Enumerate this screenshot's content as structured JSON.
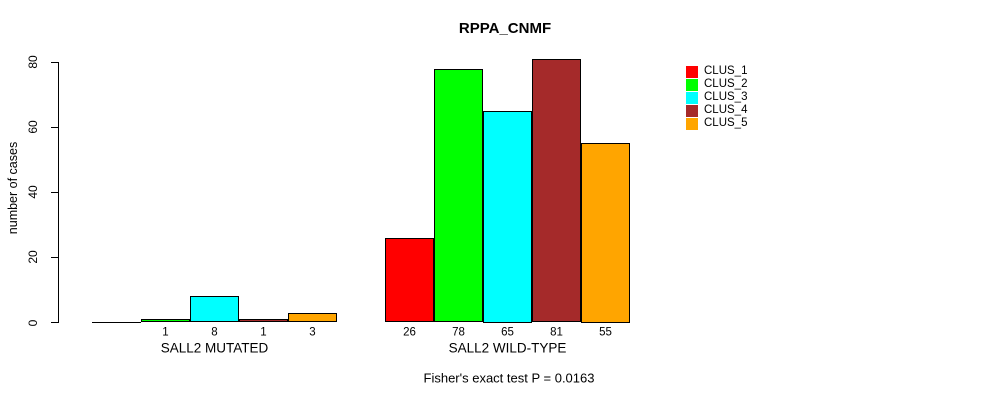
{
  "chart_data": {
    "type": "bar",
    "title": "RPPA_CNMF",
    "ylabel": "number of cases",
    "xlabel": "",
    "ylim": [
      0,
      80
    ],
    "yticks": [
      0,
      20,
      40,
      60,
      80
    ],
    "grid": false,
    "legend_position": "right",
    "categories": [
      "SALL2 MUTATED",
      "SALL2 WILD-TYPE"
    ],
    "series": [
      {
        "name": "CLUS_1",
        "color": "#FF0000",
        "values": [
          0,
          26
        ]
      },
      {
        "name": "CLUS_2",
        "color": "#00FF00",
        "values": [
          1,
          78
        ]
      },
      {
        "name": "CLUS_3",
        "color": "#00FFFF",
        "values": [
          8,
          65
        ]
      },
      {
        "name": "CLUS_4",
        "color": "#A52A2A",
        "values": [
          1,
          81
        ]
      },
      {
        "name": "CLUS_5",
        "color": "#FFA500",
        "values": [
          3,
          55
        ]
      }
    ],
    "bar_value_labels": [
      [
        "",
        "1",
        "8",
        "1",
        "3"
      ],
      [
        "26",
        "78",
        "65",
        "81",
        "55"
      ]
    ],
    "annotation": "Fisher's exact test P = 0.0163"
  }
}
